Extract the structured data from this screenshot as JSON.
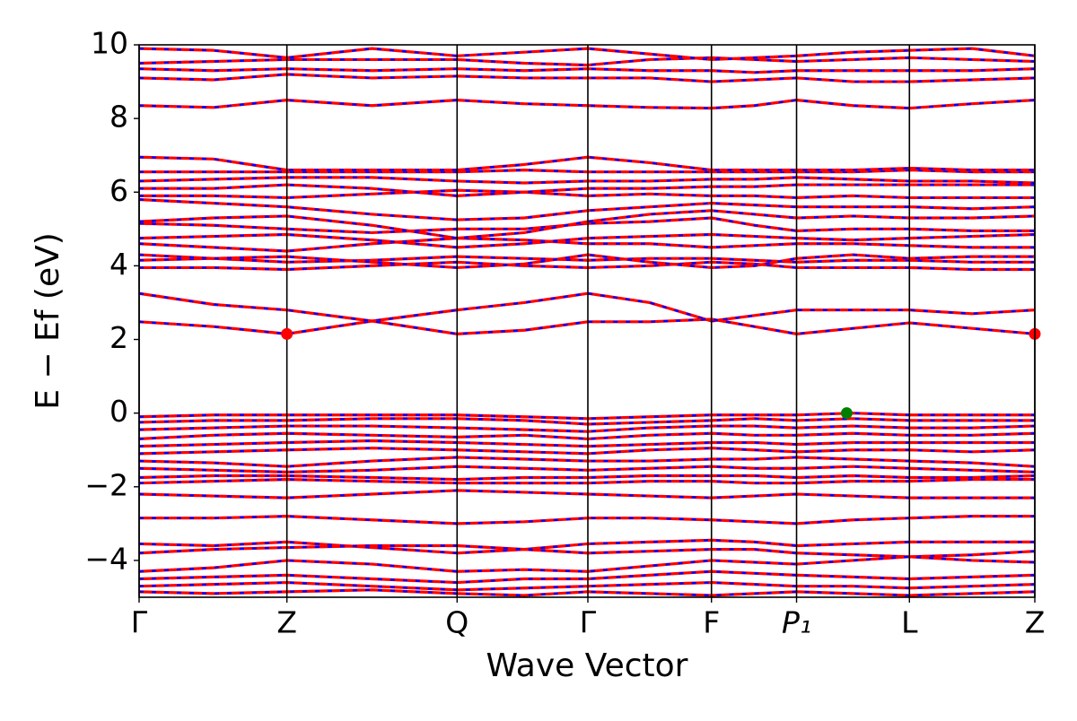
{
  "chart_data": {
    "type": "band",
    "xlabel": "Wave Vector",
    "ylabel": "E − Ef (eV)",
    "xlim": [
      0,
      1
    ],
    "ylim": [
      -5,
      10
    ],
    "xticks": [
      {
        "value": 0,
        "label": "Γ"
      },
      {
        "value": 0.165,
        "label": "Z"
      },
      {
        "value": 0.355,
        "label": "Q"
      },
      {
        "value": 0.501,
        "label": "Γ"
      },
      {
        "value": 0.639,
        "label": "F"
      },
      {
        "value": 0.734,
        "label": "P₁"
      },
      {
        "value": 0.86,
        "label": "L"
      },
      {
        "value": 1,
        "label": "Z"
      }
    ],
    "yticks": [
      {
        "value": -4,
        "label": "−4"
      },
      {
        "value": -2,
        "label": "−2"
      },
      0,
      2,
      4,
      6,
      8,
      10
    ],
    "color": "#ff0000",
    "dash_color": "#0000ff",
    "x": [
      0,
      0.083,
      0.165,
      0.26,
      0.355,
      0.43,
      0.501,
      0.57,
      0.639,
      0.687,
      0.734,
      0.797,
      0.86,
      0.93,
      1
    ],
    "series": [
      {
        "values": [
          2.48,
          2.35,
          2.15,
          2.5,
          2.8,
          3.0,
          3.25,
          3.0,
          2.5,
          2.65,
          2.8,
          2.8,
          2.8,
          2.7,
          2.8
        ]
      },
      {
        "values": [
          3.25,
          2.95,
          2.8,
          2.5,
          2.15,
          2.25,
          2.48,
          2.48,
          2.55,
          2.35,
          2.15,
          2.3,
          2.45,
          2.3,
          2.15
        ]
      },
      {
        "values": [
          3.95,
          3.95,
          3.9,
          4.0,
          4.1,
          4.0,
          3.95,
          4.0,
          4.1,
          4.05,
          3.95,
          3.95,
          3.95,
          3.9,
          3.9
        ]
      },
      {
        "values": [
          4.15,
          4.2,
          4.1,
          4.15,
          4.25,
          4.2,
          4.15,
          4.2,
          4.2,
          4.15,
          4.1,
          4.15,
          4.15,
          4.1,
          4.1
        ]
      },
      {
        "values": [
          4.3,
          4.2,
          4.25,
          4.1,
          3.95,
          4.05,
          4.3,
          4.1,
          3.95,
          4.0,
          4.2,
          4.3,
          4.2,
          4.25,
          4.25
        ]
      },
      {
        "values": [
          4.6,
          4.5,
          4.4,
          4.6,
          4.75,
          4.7,
          4.6,
          4.6,
          4.5,
          4.55,
          4.6,
          4.6,
          4.55,
          4.5,
          4.5
        ]
      },
      {
        "values": [
          4.75,
          4.8,
          4.85,
          4.7,
          4.5,
          4.6,
          4.75,
          4.8,
          4.85,
          4.8,
          4.75,
          4.7,
          4.75,
          4.8,
          4.85
        ]
      },
      {
        "values": [
          5.15,
          5.1,
          5.0,
          4.9,
          5.0,
          5.0,
          5.15,
          5.2,
          5.3,
          5.1,
          4.95,
          5.0,
          5.0,
          4.95,
          4.95
        ]
      },
      {
        "values": [
          5.2,
          5.3,
          5.35,
          5.1,
          4.75,
          4.9,
          5.2,
          5.4,
          5.5,
          5.4,
          5.3,
          5.35,
          5.3,
          5.3,
          5.35
        ]
      },
      {
        "values": [
          5.8,
          5.7,
          5.6,
          5.4,
          5.25,
          5.3,
          5.5,
          5.6,
          5.7,
          5.65,
          5.6,
          5.6,
          5.6,
          5.55,
          5.6
        ]
      },
      {
        "values": [
          5.9,
          5.9,
          5.85,
          5.95,
          6.05,
          6.0,
          5.9,
          5.95,
          5.9,
          5.9,
          5.85,
          5.9,
          5.85,
          5.85,
          5.85
        ]
      },
      {
        "values": [
          6.1,
          6.1,
          6.2,
          6.1,
          5.9,
          6.0,
          6.1,
          6.1,
          6.15,
          6.15,
          6.2,
          6.2,
          6.2,
          6.2,
          6.2
        ]
      },
      {
        "values": [
          6.3,
          6.35,
          6.4,
          6.4,
          6.3,
          6.25,
          6.3,
          6.3,
          6.35,
          6.35,
          6.4,
          6.35,
          6.3,
          6.3,
          6.25
        ]
      },
      {
        "values": [
          6.55,
          6.55,
          6.55,
          6.55,
          6.55,
          6.6,
          6.55,
          6.55,
          6.55,
          6.55,
          6.55,
          6.55,
          6.6,
          6.55,
          6.55
        ]
      },
      {
        "values": [
          6.95,
          6.9,
          6.6,
          6.6,
          6.6,
          6.75,
          6.95,
          6.8,
          6.6,
          6.6,
          6.6,
          6.6,
          6.65,
          6.6,
          6.6
        ]
      },
      {
        "values": [
          8.35,
          8.3,
          8.5,
          8.35,
          8.5,
          8.4,
          8.35,
          8.3,
          8.28,
          8.35,
          8.5,
          8.35,
          8.28,
          8.4,
          8.5
        ]
      },
      {
        "values": [
          9.1,
          9.05,
          9.2,
          9.1,
          9.15,
          9.1,
          9.1,
          9.1,
          9.0,
          9.05,
          9.1,
          9.0,
          9.0,
          9.05,
          9.1
        ]
      },
      {
        "values": [
          9.35,
          9.3,
          9.35,
          9.3,
          9.35,
          9.3,
          9.35,
          9.3,
          9.3,
          9.25,
          9.3,
          9.3,
          9.3,
          9.3,
          9.35
        ]
      },
      {
        "values": [
          9.5,
          9.55,
          9.6,
          9.6,
          9.6,
          9.5,
          9.45,
          9.6,
          9.65,
          9.6,
          9.55,
          9.6,
          9.65,
          9.6,
          9.55
        ]
      },
      {
        "values": [
          9.9,
          9.85,
          9.65,
          9.9,
          9.7,
          9.8,
          9.9,
          9.75,
          9.6,
          9.65,
          9.7,
          9.8,
          9.85,
          9.9,
          9.7
        ]
      },
      {
        "values": [
          -0.1,
          -0.05,
          -0.05,
          -0.05,
          -0.05,
          -0.1,
          -0.15,
          -0.1,
          -0.05,
          -0.05,
          -0.05,
          0,
          -0.05,
          -0.05,
          -0.05
        ]
      },
      {
        "values": [
          -0.25,
          -0.2,
          -0.2,
          -0.15,
          -0.15,
          -0.2,
          -0.3,
          -0.25,
          -0.2,
          -0.15,
          -0.2,
          -0.15,
          -0.2,
          -0.2,
          -0.2
        ]
      },
      {
        "values": [
          -0.45,
          -0.4,
          -0.35,
          -0.35,
          -0.4,
          -0.45,
          -0.5,
          -0.4,
          -0.35,
          -0.35,
          -0.4,
          -0.35,
          -0.4,
          -0.4,
          -0.35
        ]
      },
      {
        "values": [
          -0.7,
          -0.6,
          -0.55,
          -0.6,
          -0.65,
          -0.6,
          -0.7,
          -0.6,
          -0.55,
          -0.6,
          -0.6,
          -0.55,
          -0.6,
          -0.6,
          -0.55
        ]
      },
      {
        "values": [
          -0.9,
          -0.85,
          -0.8,
          -0.75,
          -0.8,
          -0.85,
          -0.9,
          -0.85,
          -0.8,
          -0.8,
          -0.85,
          -0.8,
          -0.8,
          -0.8,
          -0.8
        ]
      },
      {
        "values": [
          -1.1,
          -1.05,
          -1.0,
          -0.95,
          -1.0,
          -1.05,
          -1.1,
          -1.0,
          -0.95,
          -1.0,
          -1.05,
          -1.0,
          -1.0,
          -1.05,
          -1.0
        ]
      },
      {
        "values": [
          -1.3,
          -1.35,
          -1.45,
          -1.3,
          -1.2,
          -1.25,
          -1.3,
          -1.3,
          -1.25,
          -1.25,
          -1.2,
          -1.25,
          -1.3,
          -1.35,
          -1.45
        ]
      },
      {
        "values": [
          -1.5,
          -1.55,
          -1.6,
          -1.55,
          -1.45,
          -1.5,
          -1.55,
          -1.5,
          -1.45,
          -1.5,
          -1.5,
          -1.45,
          -1.5,
          -1.55,
          -1.6
        ]
      },
      {
        "values": [
          -1.75,
          -1.7,
          -1.7,
          -1.75,
          -1.8,
          -1.75,
          -1.75,
          -1.7,
          -1.7,
          -1.7,
          -1.75,
          -1.7,
          -1.75,
          -1.75,
          -1.7
        ]
      },
      {
        "values": [
          -1.9,
          -1.85,
          -1.8,
          -1.85,
          -1.9,
          -1.9,
          -1.9,
          -1.85,
          -1.85,
          -1.9,
          -1.9,
          -1.85,
          -1.85,
          -1.8,
          -1.8
        ]
      },
      {
        "values": [
          -2.2,
          -2.25,
          -2.3,
          -2.2,
          -2.1,
          -2.15,
          -2.2,
          -2.25,
          -2.3,
          -2.25,
          -2.2,
          -2.25,
          -2.3,
          -2.3,
          -2.3
        ]
      },
      {
        "values": [
          -2.85,
          -2.85,
          -2.8,
          -2.9,
          -3.0,
          -2.95,
          -2.85,
          -2.85,
          -2.9,
          -2.95,
          -3.0,
          -2.9,
          -2.85,
          -2.8,
          -2.8
        ]
      },
      {
        "values": [
          -3.55,
          -3.6,
          -3.5,
          -3.65,
          -3.8,
          -3.7,
          -3.55,
          -3.5,
          -3.45,
          -3.5,
          -3.6,
          -3.55,
          -3.5,
          -3.5,
          -3.5
        ]
      },
      {
        "values": [
          -3.8,
          -3.7,
          -3.65,
          -3.6,
          -3.6,
          -3.7,
          -3.8,
          -3.75,
          -3.7,
          -3.7,
          -3.8,
          -3.85,
          -3.9,
          -3.85,
          -3.75
        ]
      },
      {
        "values": [
          -4.3,
          -4.2,
          -4.0,
          -4.1,
          -4.3,
          -4.25,
          -4.3,
          -4.15,
          -4.0,
          -4.05,
          -4.1,
          -4.0,
          -3.9,
          -4.0,
          -4.05
        ]
      },
      {
        "values": [
          -4.5,
          -4.45,
          -4.4,
          -4.5,
          -4.6,
          -4.5,
          -4.5,
          -4.4,
          -4.3,
          -4.35,
          -4.4,
          -4.45,
          -4.5,
          -4.45,
          -4.4
        ]
      },
      {
        "values": [
          -4.7,
          -4.65,
          -4.6,
          -4.7,
          -4.8,
          -4.75,
          -4.7,
          -4.65,
          -4.6,
          -4.65,
          -4.7,
          -4.7,
          -4.75,
          -4.7,
          -4.65
        ]
      },
      {
        "values": [
          -4.85,
          -4.9,
          -4.85,
          -4.8,
          -4.9,
          -4.95,
          -4.85,
          -4.9,
          -4.95,
          -4.9,
          -4.85,
          -4.9,
          -4.95,
          -4.9,
          -4.85
        ]
      }
    ],
    "markers": [
      {
        "x": 0.165,
        "y": 2.15,
        "color": "#ff0000"
      },
      {
        "x": 1,
        "y": 2.15,
        "color": "#ff0000"
      },
      {
        "x": 0.79,
        "y": 0,
        "color": "#008000"
      }
    ]
  }
}
